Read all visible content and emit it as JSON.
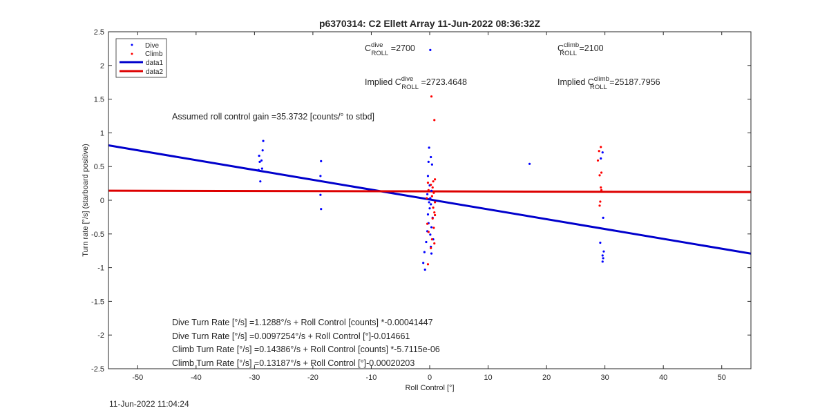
{
  "timestamp": "11-Jun-2022 11:04:24",
  "chart_data": {
    "type": "scatter",
    "title": "p6370314: C2 Ellett Array 11-Jun-2022 08:36:32Z",
    "xlabel": "Roll Control [°]",
    "ylabel": "Turn rate [°/s] (starboard positive)",
    "xlim": [
      -55,
      55
    ],
    "ylim": [
      -2.5,
      2.5
    ],
    "x_ticks": [
      "-50",
      "-40",
      "-30",
      "-20",
      "-10",
      "0",
      "10",
      "20",
      "30",
      "40",
      "50"
    ],
    "y_ticks": [
      "2.5",
      "2",
      "1.5",
      "1",
      "0.5",
      "0",
      "-0.5",
      "-1",
      "-1.5",
      "-2",
      "-2.5"
    ],
    "grid": false,
    "legend": {
      "position": "top-left",
      "entries": [
        {
          "label": "Dive",
          "style": "dot",
          "color": "#0000ff"
        },
        {
          "label": "Climb",
          "style": "dot",
          "color": "#ff0000"
        },
        {
          "label": "data1",
          "style": "line",
          "color": "#0000cc"
        },
        {
          "label": "data2",
          "style": "line",
          "color": "#dd0000"
        }
      ]
    },
    "series": [
      {
        "name": "Dive",
        "kind": "points",
        "color": "#0000ff",
        "points": [
          [
            -28.5,
            0.88
          ],
          [
            -28.6,
            0.74
          ],
          [
            -29.2,
            0.66
          ],
          [
            -28.8,
            0.59
          ],
          [
            -29.1,
            0.57
          ],
          [
            -28.7,
            0.47
          ],
          [
            -29.3,
            0.45
          ],
          [
            -29.0,
            0.28
          ],
          [
            -18.6,
            0.58
          ],
          [
            -18.7,
            0.36
          ],
          [
            -18.7,
            0.08
          ],
          [
            -18.6,
            -0.13
          ],
          [
            0.1,
            2.23
          ],
          [
            -0.1,
            0.78
          ],
          [
            0.2,
            0.64
          ],
          [
            -0.2,
            0.57
          ],
          [
            0.4,
            0.53
          ],
          [
            -0.3,
            0.36
          ],
          [
            0.0,
            0.22
          ],
          [
            0.3,
            0.14
          ],
          [
            -0.4,
            0.09
          ],
          [
            0.1,
            0.03
          ],
          [
            -0.1,
            -0.03
          ],
          [
            0.2,
            -0.06
          ],
          [
            0.0,
            -0.12
          ],
          [
            -0.3,
            -0.21
          ],
          [
            0.5,
            -0.26
          ],
          [
            -0.2,
            -0.34
          ],
          [
            0.3,
            -0.4
          ],
          [
            -0.4,
            -0.46
          ],
          [
            0.1,
            -0.51
          ],
          [
            0.6,
            -0.58
          ],
          [
            -0.6,
            -0.62
          ],
          [
            0.2,
            -0.69
          ],
          [
            -0.9,
            -0.77
          ],
          [
            0.3,
            -0.79
          ],
          [
            -1.1,
            -0.93
          ],
          [
            -0.8,
            -1.03
          ],
          [
            17.1,
            0.54
          ],
          [
            29.6,
            0.71
          ],
          [
            29.3,
            0.62
          ],
          [
            29.7,
            -0.26
          ],
          [
            29.2,
            -0.63
          ],
          [
            29.8,
            -0.76
          ],
          [
            29.6,
            -0.82
          ],
          [
            29.7,
            -0.86
          ],
          [
            29.6,
            -0.91
          ]
        ]
      },
      {
        "name": "Climb",
        "kind": "points",
        "color": "#ff0000",
        "points": [
          [
            0.3,
            1.54
          ],
          [
            0.8,
            1.19
          ],
          [
            0.9,
            0.31
          ],
          [
            0.6,
            0.28
          ],
          [
            -0.3,
            0.26
          ],
          [
            0.2,
            0.23
          ],
          [
            0.5,
            0.19
          ],
          [
            -0.2,
            0.15
          ],
          [
            0.7,
            0.11
          ],
          [
            0.4,
            0.06
          ],
          [
            -0.5,
            0.03
          ],
          [
            0.9,
            -0.03
          ],
          [
            0.6,
            -0.11
          ],
          [
            0.8,
            -0.18
          ],
          [
            0.9,
            -0.22
          ],
          [
            0.5,
            -0.27
          ],
          [
            -0.4,
            -0.35
          ],
          [
            0.7,
            -0.41
          ],
          [
            -0.2,
            -0.47
          ],
          [
            0.4,
            -0.58
          ],
          [
            0.8,
            -0.64
          ],
          [
            0.2,
            -0.71
          ],
          [
            -0.3,
            -0.95
          ],
          [
            29.3,
            0.79
          ],
          [
            29.0,
            0.73
          ],
          [
            28.8,
            0.59
          ],
          [
            29.4,
            0.41
          ],
          [
            29.1,
            0.37
          ],
          [
            29.3,
            0.19
          ],
          [
            29.4,
            0.15
          ],
          [
            29.2,
            -0.02
          ],
          [
            29.1,
            -0.08
          ]
        ]
      },
      {
        "name": "data1",
        "kind": "line",
        "color": "#0000cc",
        "x": [
          -55,
          55
        ],
        "y": [
          0.8142,
          -0.7917
        ]
      },
      {
        "name": "data2",
        "kind": "line",
        "color": "#dd0000",
        "x": [
          -55,
          55
        ],
        "y": [
          0.142,
          0.1215
        ]
      }
    ],
    "annotations": {
      "c_dive": {
        "prefix": "C",
        "sup": "dive",
        "sub": "ROLL",
        "value": " =2700"
      },
      "c_climb": {
        "prefix": "C",
        "sup": "climb",
        "sub": "ROLL",
        "value": " =2100"
      },
      "implied_dive": {
        "prefix": "Implied C",
        "sup": "dive",
        "sub": "ROLL",
        "value": " =2723.4648"
      },
      "implied_climb": {
        "prefix": "Implied C",
        "sup": "climb",
        "sub": "ROLL",
        "value": " =25187.7956"
      },
      "gain": "Assumed roll control gain =35.3732 [counts/° to stbd]",
      "equations": [
        "Dive Turn Rate [°/s] =1.1288°/s + Roll Control [counts] *-0.00041447",
        "Dive Turn Rate [°/s] =0.0097254°/s + Roll Control [°]-0.014661",
        "Climb Turn Rate [°/s] =0.14386°/s + Roll Control [counts] *-5.7115e-06",
        "Climb Turn Rate [°/s] =0.13187°/s + Roll Control [°]-0.00020203"
      ]
    }
  }
}
